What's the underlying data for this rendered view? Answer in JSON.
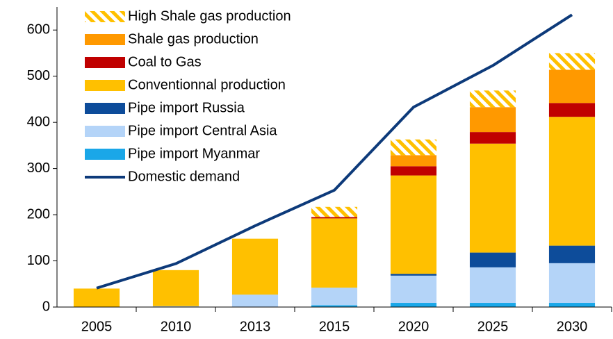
{
  "chart_data": {
    "type": "bar",
    "stacked": true,
    "categories": [
      "2005",
      "2010",
      "2013",
      "2015",
      "2020",
      "2025",
      "2030"
    ],
    "ylim": [
      0,
      650
    ],
    "yticks": [
      0,
      100,
      200,
      300,
      400,
      500,
      600
    ],
    "legend": "top-left",
    "series": [
      {
        "name": "High Shale gas production",
        "color": "#FFC000",
        "hatch": true,
        "values": [
          0,
          0,
          0,
          22,
          34,
          36,
          36
        ]
      },
      {
        "name": "Shale gas production",
        "color": "#FF9900",
        "values": [
          0,
          0,
          0,
          0,
          24,
          54,
          72
        ]
      },
      {
        "name": "Coal to Gas",
        "color": "#C00000",
        "values": [
          0,
          0,
          0,
          3,
          20,
          25,
          30
        ]
      },
      {
        "name": "Conventionnal production",
        "color": "#FFC000",
        "values": [
          40,
          78,
          121,
          150,
          213,
          236,
          279
        ]
      },
      {
        "name": "Pipe import Russia",
        "color": "#0D4C9A",
        "values": [
          0,
          0,
          0,
          0,
          4,
          32,
          38
        ]
      },
      {
        "name": "Pipe import Central Asia",
        "color": "#B4D4F8",
        "values": [
          0,
          2,
          27,
          38,
          59,
          77,
          86
        ]
      },
      {
        "name": "Pipe import Myanmar",
        "color": "#1AA7E8",
        "values": [
          0,
          0,
          0,
          4,
          9,
          9,
          9
        ]
      },
      {
        "name": "Domestic demand",
        "color": "#0D3A7A",
        "type": "line",
        "values": [
          41,
          94,
          176,
          253,
          433,
          523,
          633
        ]
      }
    ]
  }
}
